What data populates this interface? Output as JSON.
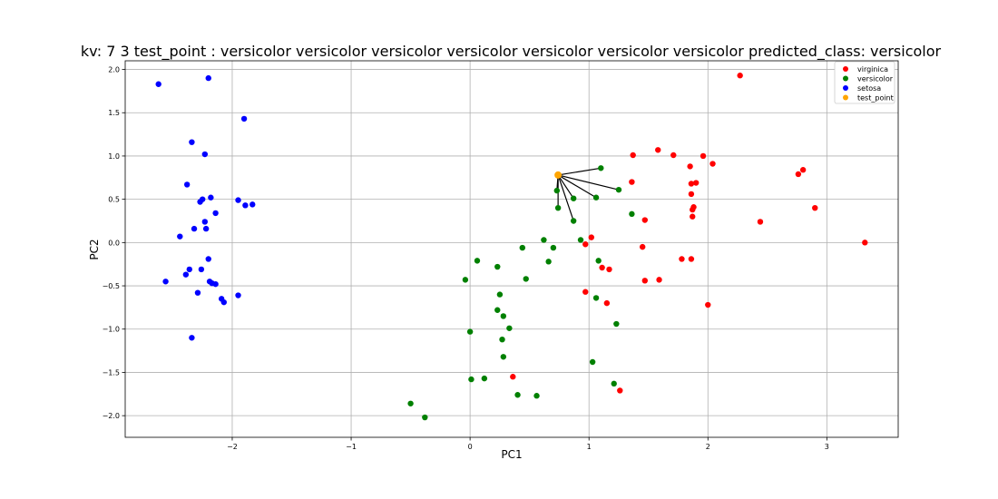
{
  "chart_data": {
    "type": "scatter",
    "title": "kv: 7 3 test_point : versicolor versicolor versicolor versicolor versicolor versicolor versicolor   predicted_class: versicolor",
    "xlabel": "PC1",
    "ylabel": "PC2",
    "xlim": [
      -2.9,
      3.6
    ],
    "ylim": [
      -2.25,
      2.1
    ],
    "xticks": [
      -2,
      -1,
      0,
      1,
      2,
      3
    ],
    "xtick_labels": [
      "−2",
      "−1",
      "0",
      "1",
      "2",
      "3"
    ],
    "yticks": [
      -2.0,
      -1.5,
      -1.0,
      -0.5,
      0.0,
      0.5,
      1.0,
      1.5,
      2.0
    ],
    "ytick_labels": [
      "−2.0",
      "−1.5",
      "−1.0",
      "−0.5",
      "0.0",
      "0.5",
      "1.0",
      "1.5",
      "2.0"
    ],
    "grid": true,
    "legend_position": "top-right",
    "series": [
      {
        "name": "virginica",
        "color": "#ff0000",
        "points": [
          [
            2.27,
            1.93
          ],
          [
            1.58,
            1.07
          ],
          [
            1.71,
            1.01
          ],
          [
            1.37,
            1.01
          ],
          [
            1.96,
            1.0
          ],
          [
            2.04,
            0.91
          ],
          [
            1.85,
            0.88
          ],
          [
            2.8,
            0.84
          ],
          [
            2.76,
            0.79
          ],
          [
            1.36,
            0.7
          ],
          [
            1.86,
            0.68
          ],
          [
            1.9,
            0.69
          ],
          [
            1.86,
            0.56
          ],
          [
            1.88,
            0.41
          ],
          [
            1.87,
            0.38
          ],
          [
            2.9,
            0.4
          ],
          [
            1.87,
            0.3
          ],
          [
            1.47,
            0.26
          ],
          [
            2.44,
            0.24
          ],
          [
            3.32,
            0.0
          ],
          [
            1.02,
            0.06
          ],
          [
            0.97,
            -0.02
          ],
          [
            1.45,
            -0.05
          ],
          [
            1.78,
            -0.19
          ],
          [
            1.86,
            -0.19
          ],
          [
            1.11,
            -0.29
          ],
          [
            1.17,
            -0.31
          ],
          [
            1.47,
            -0.44
          ],
          [
            1.59,
            -0.43
          ],
          [
            0.97,
            -0.57
          ],
          [
            1.15,
            -0.7
          ],
          [
            2.0,
            -0.72
          ],
          [
            0.36,
            -1.55
          ],
          [
            1.26,
            -1.71
          ]
        ]
      },
      {
        "name": "versicolor",
        "color": "#008000",
        "points": [
          [
            1.1,
            0.86
          ],
          [
            1.25,
            0.61
          ],
          [
            0.73,
            0.6
          ],
          [
            0.87,
            0.51
          ],
          [
            1.06,
            0.52
          ],
          [
            0.74,
            0.4
          ],
          [
            1.36,
            0.33
          ],
          [
            0.87,
            0.25
          ],
          [
            0.62,
            0.03
          ],
          [
            0.93,
            0.03
          ],
          [
            0.44,
            -0.06
          ],
          [
            0.7,
            -0.06
          ],
          [
            0.06,
            -0.21
          ],
          [
            0.66,
            -0.22
          ],
          [
            1.08,
            -0.21
          ],
          [
            0.23,
            -0.28
          ],
          [
            0.47,
            -0.42
          ],
          [
            -0.04,
            -0.43
          ],
          [
            0.25,
            -0.6
          ],
          [
            1.06,
            -0.64
          ],
          [
            0.23,
            -0.78
          ],
          [
            0.28,
            -0.85
          ],
          [
            1.23,
            -0.94
          ],
          [
            0.33,
            -0.99
          ],
          [
            0.0,
            -1.03
          ],
          [
            0.27,
            -1.12
          ],
          [
            0.28,
            -1.32
          ],
          [
            1.03,
            -1.38
          ],
          [
            0.4,
            -1.76
          ],
          [
            0.56,
            -1.77
          ],
          [
            0.01,
            -1.58
          ],
          [
            0.12,
            -1.57
          ],
          [
            1.21,
            -1.63
          ],
          [
            -0.5,
            -1.86
          ],
          [
            -0.38,
            -2.02
          ]
        ]
      },
      {
        "name": "setosa",
        "color": "#0000ff",
        "points": [
          [
            -2.62,
            1.83
          ],
          [
            -2.2,
            1.9
          ],
          [
            -1.9,
            1.43
          ],
          [
            -2.34,
            1.16
          ],
          [
            -2.23,
            1.02
          ],
          [
            -2.38,
            0.67
          ],
          [
            -2.25,
            0.5
          ],
          [
            -2.18,
            0.52
          ],
          [
            -2.27,
            0.47
          ],
          [
            -1.95,
            0.49
          ],
          [
            -1.89,
            0.43
          ],
          [
            -1.83,
            0.44
          ],
          [
            -2.14,
            0.34
          ],
          [
            -2.23,
            0.24
          ],
          [
            -2.32,
            0.16
          ],
          [
            -2.22,
            0.16
          ],
          [
            -2.44,
            0.07
          ],
          [
            -2.2,
            -0.19
          ],
          [
            -2.36,
            -0.31
          ],
          [
            -2.26,
            -0.31
          ],
          [
            -2.39,
            -0.37
          ],
          [
            -2.56,
            -0.45
          ],
          [
            -2.19,
            -0.45
          ],
          [
            -2.17,
            -0.47
          ],
          [
            -2.14,
            -0.48
          ],
          [
            -2.29,
            -0.58
          ],
          [
            -1.95,
            -0.61
          ],
          [
            -2.09,
            -0.65
          ],
          [
            -2.07,
            -0.69
          ],
          [
            -2.34,
            -1.1
          ]
        ]
      },
      {
        "name": "test_point",
        "color": "#ffa500",
        "points": [
          [
            0.74,
            0.78
          ]
        ]
      }
    ],
    "neighbor_lines": {
      "from": [
        0.74,
        0.78
      ],
      "to": [
        [
          1.1,
          0.86
        ],
        [
          1.25,
          0.61
        ],
        [
          1.06,
          0.52
        ],
        [
          0.87,
          0.51
        ],
        [
          0.73,
          0.6
        ],
        [
          0.74,
          0.4
        ],
        [
          0.87,
          0.25
        ]
      ],
      "color": "#000000"
    }
  }
}
